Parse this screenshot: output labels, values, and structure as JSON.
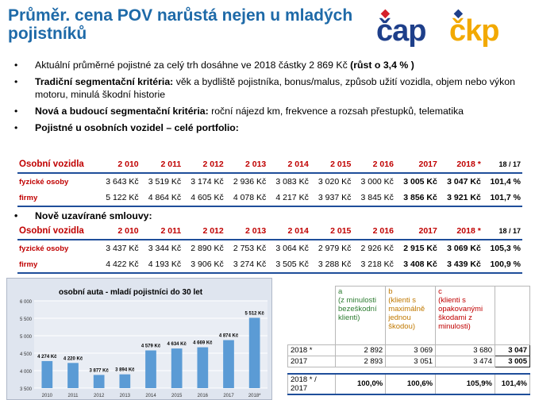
{
  "title": "Průměr. cena POV narůstá nejen u mladých pojistníků",
  "logos": {
    "left": "čap",
    "right": "čkp"
  },
  "bullets": [
    {
      "bold": "",
      "text": "Aktuální průměrné pojistné za celý trh dosáhne ve 2018 částky 2 869 Kč ",
      "tail_bold": "(růst o 3,4 % )"
    },
    {
      "bold": "Tradiční segmentační kritéria:",
      "text": " věk a bydliště pojistníka, bonus/malus, způsob užití vozidla, objem nebo výkon motoru, minulá škodní historie",
      "tail_bold": ""
    },
    {
      "bold": "Nová a budoucí segmentační kritéria:",
      "text": " roční nájezd km, frekvence a rozsah přestupků, telematika",
      "tail_bold": ""
    },
    {
      "bold": "Pojistné u osobních vozidel – celé portfolio:",
      "text": "",
      "tail_bold": ""
    }
  ],
  "bullet_new": "Nově uzavírané smlouvy:",
  "table1": {
    "header": [
      "Osobní vozidla",
      "2 010",
      "2 011",
      "2 012",
      "2 013",
      "2 014",
      "2 015",
      "2 016",
      "2017",
      "2018 *",
      "18 / 17"
    ],
    "rows": [
      [
        "fyzické osoby",
        "3 643 Kč",
        "3 519 Kč",
        "3 174 Kč",
        "2 936 Kč",
        "3 083 Kč",
        "3 020 Kč",
        "3 000 Kč",
        "3 005 Kč",
        "3 047 Kč",
        "101,4 %"
      ],
      [
        "firmy",
        "5 122 Kč",
        "4 864 Kč",
        "4 605 Kč",
        "4 078 Kč",
        "4 217 Kč",
        "3 937 Kč",
        "3 845 Kč",
        "3 856 Kč",
        "3 921 Kč",
        "101,7 %"
      ]
    ]
  },
  "table2": {
    "header": [
      "Osobní vozidla",
      "2 010",
      "2 011",
      "2 012",
      "2 013",
      "2 014",
      "2 015",
      "2 016",
      "2017",
      "2018 *",
      "18 / 17"
    ],
    "rows": [
      [
        "fyzické osoby",
        "3 437 Kč",
        "3 344 Kč",
        "2 890 Kč",
        "2 753 Kč",
        "3 064 Kč",
        "2 979 Kč",
        "2 926 Kč",
        "2 915 Kč",
        "3 069 Kč",
        "105,3 %"
      ],
      [
        "firmy",
        "4 422 Kč",
        "4 193 Kč",
        "3 906 Kč",
        "3 274 Kč",
        "3 505 Kč",
        "3 288 Kč",
        "3 218 Kč",
        "3 408 Kč",
        "3 439 Kč",
        "100,9 %"
      ]
    ]
  },
  "chart_data": {
    "type": "bar",
    "title": "osobní auta - mladí pojistníci do 30 let",
    "categories": [
      "2010",
      "2011",
      "2012",
      "2013",
      "2014",
      "2015",
      "2016",
      "2017",
      "2018*"
    ],
    "values": [
      4274,
      4220,
      3877,
      3894,
      4579,
      4634,
      4669,
      4874,
      5512
    ],
    "data_labels": [
      "4 274 Kč",
      "4 220 Kč",
      "3 877 Kč",
      "3 894 Kč",
      "4 579 Kč",
      "4 634 Kč",
      "4 669 Kč",
      "4 874 Kč",
      "5 512 Kč"
    ],
    "ylim": [
      3500,
      6000
    ],
    "yticks": [
      "3 500",
      "4 000",
      "4 500",
      "5 000",
      "5 500",
      "6 000"
    ],
    "bar_color": "#5b9bd5",
    "grid": true
  },
  "right_table": {
    "headers": [
      {
        "text": "a\n(z minulosti bezeškodní klienti)",
        "color": "#2e7d32"
      },
      {
        "text": "b\n (klienti s maximálně jednou škodou)",
        "color": "#c07800"
      },
      {
        "text": "c\n (klienti s opakovanými škodami z minulosti)",
        "color": "#c00000"
      }
    ],
    "rows": [
      [
        "2018 *",
        "2 892",
        "3 069",
        "3 680",
        "3 047"
      ],
      [
        "2017",
        "2 893",
        "3 051",
        "3 474",
        "3 005"
      ],
      [
        "2018 * / 2017",
        "100,0%",
        "100,6%",
        "105,9%",
        "101,4%"
      ]
    ]
  }
}
